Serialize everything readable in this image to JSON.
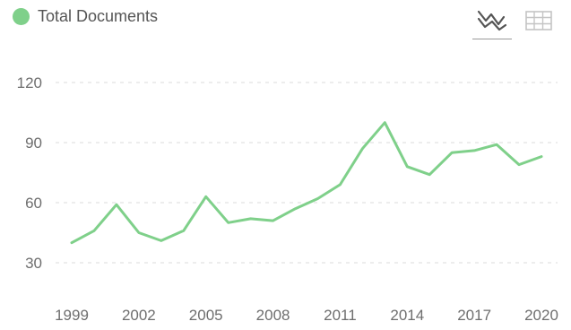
{
  "legend": {
    "label": "Total Documents",
    "color": "#7fd08a"
  },
  "toolbar": {
    "line_view_icon": "line-chart-icon",
    "table_view_icon": "table-grid-icon",
    "active": "line"
  },
  "chart_data": {
    "type": "line",
    "title": "",
    "xlabel": "",
    "ylabel": "",
    "x": [
      1999,
      2000,
      2001,
      2002,
      2003,
      2004,
      2005,
      2006,
      2007,
      2008,
      2009,
      2010,
      2011,
      2012,
      2013,
      2014,
      2015,
      2016,
      2017,
      2018,
      2019,
      2020
    ],
    "series": [
      {
        "name": "Total Documents",
        "color": "#7fd08a",
        "values": [
          40,
          46,
          59,
          45,
          41,
          46,
          63,
          50,
          52,
          51,
          57,
          62,
          69,
          87,
          100,
          78,
          74,
          85,
          86,
          89,
          79,
          83
        ]
      }
    ],
    "x_ticks": [
      "1999",
      "2002",
      "2005",
      "2008",
      "2011",
      "2014",
      "2017",
      "2020"
    ],
    "y_ticks": [
      "30",
      "60",
      "90",
      "120"
    ],
    "xlim": [
      1999,
      2020
    ],
    "ylim": [
      20,
      130
    ],
    "grid": "horizontal dashed"
  }
}
